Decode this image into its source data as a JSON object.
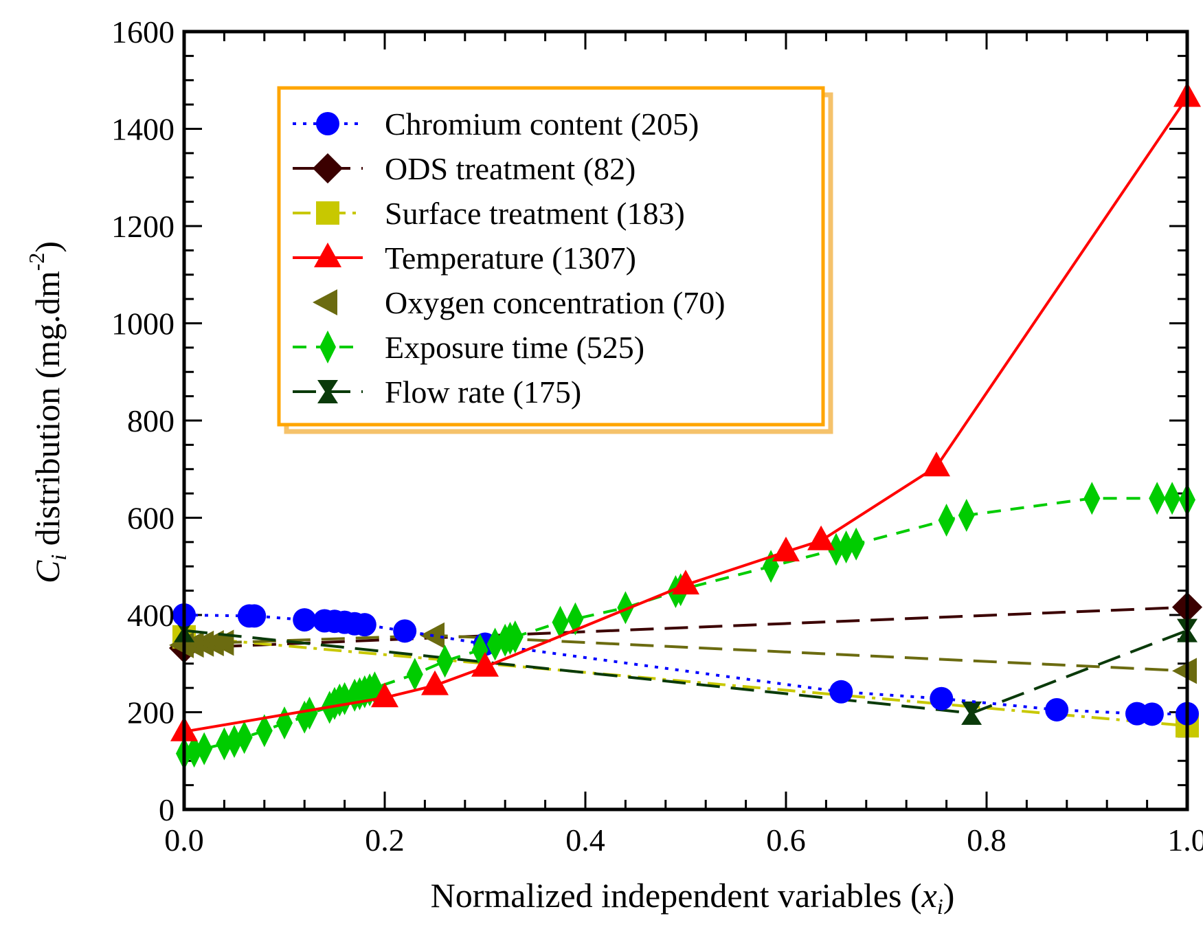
{
  "chart_data": {
    "type": "line",
    "title": "",
    "xlabel_main": "Normalized independent variables (",
    "xlabel_var": "x",
    "xlabel_sub": "i",
    "xlabel_close": ")",
    "ylabel_var": "C",
    "ylabel_sub": "i",
    "ylabel_main": " distribution (mg.dm",
    "ylabel_sup": "-2",
    "ylabel_close": ")",
    "xlim": [
      0.0,
      1.0
    ],
    "ylim": [
      0,
      1600
    ],
    "xticks": [
      "0.0",
      "0.2",
      "0.4",
      "0.6",
      "0.8",
      "1.0"
    ],
    "yticks": [
      "0",
      "200",
      "400",
      "600",
      "800",
      "1000",
      "1200",
      "1400",
      "1600"
    ],
    "legend_position": "upper-left",
    "series": [
      {
        "name": "Chromium content (205)",
        "color": "#0000ff",
        "marker": "circle",
        "dash": "dot",
        "x": [
          0.0,
          0.065,
          0.07,
          0.12,
          0.14,
          0.15,
          0.16,
          0.17,
          0.18,
          0.22,
          0.3,
          0.655,
          0.755,
          0.87,
          0.95,
          0.965,
          1.0
        ],
        "y": [
          400,
          398,
          398,
          390,
          388,
          387,
          385,
          382,
          380,
          367,
          340,
          242,
          228,
          205,
          197,
          196,
          197
        ]
      },
      {
        "name": "ODS treatment (82)",
        "color": "#3b0000",
        "marker": "diamond",
        "dash": "longdash",
        "x": [
          0.0,
          1.0
        ],
        "y": [
          332,
          416
        ]
      },
      {
        "name": "Surface treatment (183)",
        "color": "#c8c800",
        "marker": "square",
        "dash": "dashdot",
        "x": [
          0.0,
          1.0
        ],
        "y": [
          355,
          172
        ]
      },
      {
        "name": "Temperature (1307)",
        "color": "#ff0000",
        "marker": "triangle-up",
        "dash": "solid",
        "x": [
          0.0,
          0.2,
          0.25,
          0.3,
          0.5,
          0.6,
          0.635,
          0.75,
          1.0
        ],
        "y": [
          160,
          230,
          255,
          293,
          462,
          530,
          553,
          705,
          1465
        ]
      },
      {
        "name": "Oxygen concentration (70)",
        "color": "#6b6b10",
        "marker": "triangle-left",
        "dash": "longdash",
        "x": [
          0.0,
          0.01,
          0.02,
          0.03,
          0.04,
          0.25,
          1.0
        ],
        "y": [
          338,
          339,
          341,
          342,
          343,
          358,
          285
        ]
      },
      {
        "name": "Exposure time (525)",
        "color": "#00cc00",
        "marker": "thin-diamond",
        "dash": "dash",
        "x": [
          0.0,
          0.01,
          0.02,
          0.04,
          0.05,
          0.06,
          0.08,
          0.1,
          0.12,
          0.125,
          0.145,
          0.15,
          0.155,
          0.16,
          0.17,
          0.175,
          0.18,
          0.185,
          0.19,
          0.23,
          0.26,
          0.295,
          0.31,
          0.32,
          0.325,
          0.33,
          0.375,
          0.39,
          0.44,
          0.49,
          0.495,
          0.585,
          0.65,
          0.66,
          0.67,
          0.76,
          0.78,
          0.905,
          0.97,
          0.985,
          1.0
        ],
        "y": [
          115,
          120,
          125,
          135,
          140,
          148,
          162,
          178,
          190,
          198,
          210,
          218,
          225,
          228,
          235,
          238,
          242,
          246,
          250,
          278,
          305,
          328,
          340,
          348,
          352,
          355,
          385,
          392,
          415,
          448,
          452,
          500,
          535,
          540,
          546,
          595,
          605,
          640,
          640,
          640,
          637
        ]
      },
      {
        "name": "Flow rate (175)",
        "color": "#0a3a0a",
        "marker": "hourglass",
        "dash": "longdash",
        "x": [
          0.0,
          0.785,
          1.0
        ],
        "y": [
          368,
          198,
          368
        ]
      }
    ]
  }
}
